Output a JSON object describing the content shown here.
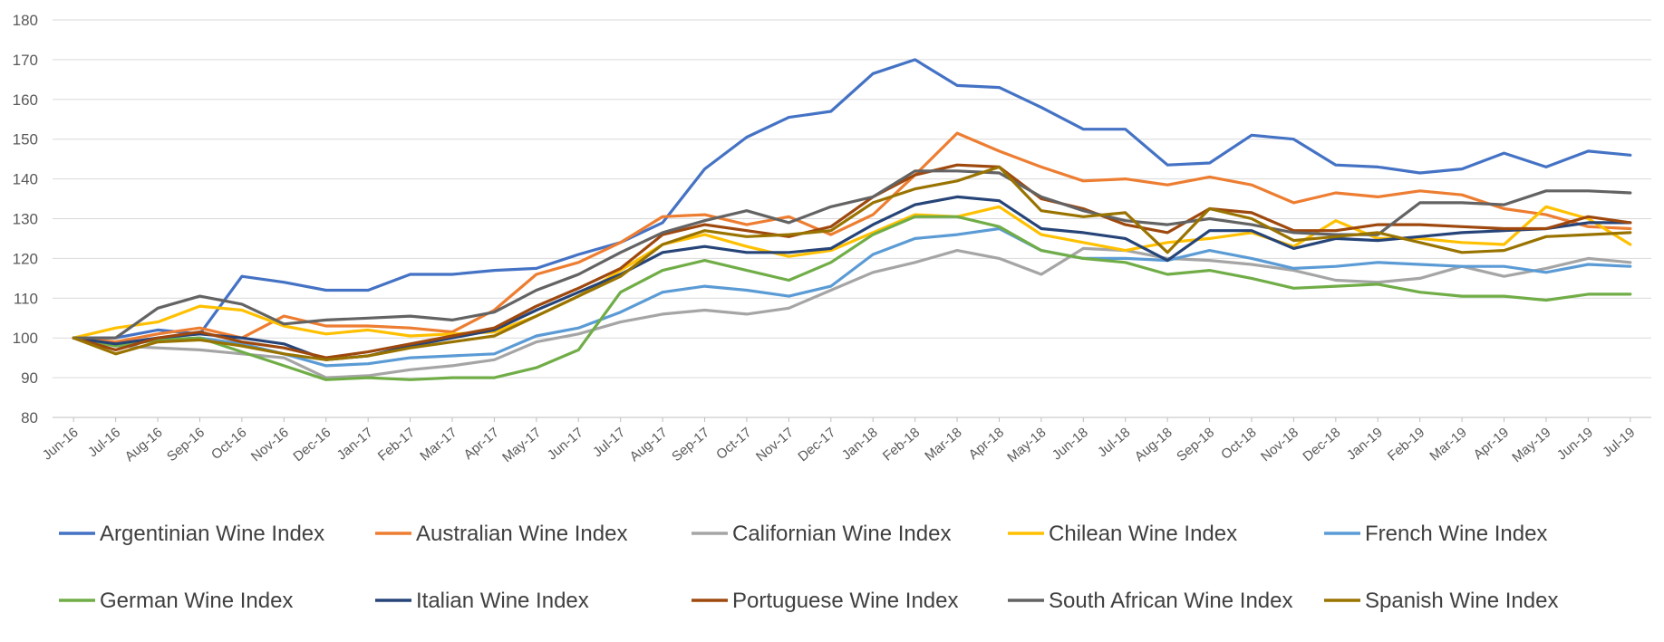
{
  "chart_data": {
    "type": "line",
    "title": "",
    "xlabel": "",
    "ylabel": "",
    "ylim": [
      80,
      180
    ],
    "yticks": [
      80,
      90,
      100,
      110,
      120,
      130,
      140,
      150,
      160,
      170,
      180
    ],
    "grid": true,
    "legend_position": "bottom",
    "categories": [
      "Jun-16",
      "Jul-16",
      "Aug-16",
      "Sep-16",
      "Oct-16",
      "Nov-16",
      "Dec-16",
      "Jan-17",
      "Feb-17",
      "Mar-17",
      "Apr-17",
      "May-17",
      "Jun-17",
      "Jul-17",
      "Aug-17",
      "Sep-17",
      "Oct-17",
      "Nov-17",
      "Dec-17",
      "Jan-18",
      "Feb-18",
      "Mar-18",
      "Apr-18",
      "May-18",
      "Jun-18",
      "Jul-18",
      "Aug-18",
      "Sep-18",
      "Oct-18",
      "Nov-18",
      "Dec-18",
      "Jan-19",
      "Feb-19",
      "Mar-19",
      "Apr-19",
      "May-19",
      "Jun-19",
      "Jul-19"
    ],
    "series": [
      {
        "name": "Argentinian Wine Index",
        "color": "#4472C4",
        "values": [
          100,
          100,
          102,
          101,
          115.5,
          114,
          112,
          112,
          116,
          116,
          117,
          117.5,
          121,
          124,
          129,
          142.5,
          150.5,
          155.5,
          157,
          166.5,
          170,
          163.5,
          163,
          158,
          152.5,
          152.5,
          143.5,
          144,
          151,
          150,
          143.5,
          143,
          141.5,
          142.5,
          146.5,
          143,
          147,
          146
        ]
      },
      {
        "name": "Australian Wine Index",
        "color": "#ED7D31",
        "values": [
          100,
          99,
          101,
          102.5,
          100,
          105.5,
          103,
          103,
          102.5,
          101.5,
          107,
          116,
          119,
          124,
          130.5,
          131,
          128.5,
          130.5,
          126,
          131,
          141,
          151.5,
          147,
          143,
          139.5,
          140,
          138.5,
          140.5,
          138.5,
          134,
          136.5,
          135.5,
          137,
          136,
          132.5,
          131,
          128,
          127.5
        ]
      },
      {
        "name": "Californian Wine Index",
        "color": "#A5A5A5",
        "values": [
          100,
          98,
          97.5,
          97,
          96,
          95,
          90,
          90.5,
          92,
          93,
          94.5,
          99,
          101,
          104,
          106,
          107,
          106,
          107.5,
          112,
          116.5,
          119,
          122,
          120,
          116,
          122.5,
          122,
          120,
          119.5,
          118.5,
          117,
          114.5,
          114,
          115,
          118,
          115.5,
          117.5,
          120,
          119
        ]
      },
      {
        "name": "Chilean Wine Index",
        "color": "#FFC000",
        "values": [
          100,
          102.5,
          104,
          108,
          107,
          103,
          101,
          102,
          100.5,
          101,
          101.5,
          105.5,
          110.5,
          117,
          123.5,
          126,
          123,
          120.5,
          122,
          126.5,
          131,
          130.5,
          133,
          126,
          124,
          122,
          124,
          125,
          126.5,
          123,
          129.5,
          125,
          125,
          124,
          123.5,
          133,
          130,
          123.5
        ]
      },
      {
        "name": "French Wine Index",
        "color": "#5B9BD5",
        "values": [
          100,
          98,
          99.5,
          100,
          98.5,
          96,
          93,
          93.5,
          95,
          95.5,
          96,
          100.5,
          102.5,
          106.5,
          111.5,
          113,
          112,
          110.5,
          113,
          121,
          125,
          126,
          127.5,
          122,
          120,
          120,
          119.5,
          122,
          120,
          117.5,
          118,
          119,
          118.5,
          118,
          118,
          116.5,
          118.5,
          118
        ]
      },
      {
        "name": "German Wine Index",
        "color": "#70AD47",
        "values": [
          100,
          98,
          99.5,
          100,
          96.5,
          93,
          89.5,
          90,
          89.5,
          90,
          90,
          92.5,
          97,
          111.5,
          117,
          119.5,
          117,
          114.5,
          119,
          126,
          130.5,
          130.5,
          128,
          122,
          120,
          119,
          116,
          117,
          115,
          112.5,
          113,
          113.5,
          111.5,
          110.5,
          110.5,
          109.5,
          111,
          111
        ]
      },
      {
        "name": "Italian Wine Index",
        "color": "#264478",
        "values": [
          100,
          98.5,
          100,
          101,
          100,
          98.5,
          94.5,
          95.5,
          98,
          100,
          102,
          107,
          111.5,
          116,
          121.5,
          123,
          121.5,
          121.5,
          122.5,
          128.5,
          133.5,
          135.5,
          134.5,
          127.5,
          126.5,
          125,
          119.5,
          127,
          127,
          122.5,
          125,
          124.5,
          125.5,
          126.5,
          127,
          127.5,
          129,
          129
        ]
      },
      {
        "name": "Portuguese Wine Index",
        "color": "#9E480E",
        "values": [
          100,
          97,
          100,
          101.5,
          99,
          97.5,
          95,
          96.5,
          98.5,
          100.5,
          102.5,
          108,
          112.5,
          117.5,
          126,
          128.5,
          127,
          125.5,
          128,
          135.5,
          141,
          143.5,
          143,
          135,
          132.5,
          128.5,
          126.5,
          132.5,
          131.5,
          127,
          127,
          128.5,
          128.5,
          128,
          127.5,
          127.5,
          130.5,
          129
        ]
      },
      {
        "name": "South African Wine Index",
        "color": "#636363",
        "values": [
          100,
          100,
          107.5,
          110.5,
          108.5,
          103.5,
          104.5,
          105,
          105.5,
          104.5,
          106.5,
          112,
          116,
          121.5,
          126.5,
          129.5,
          132,
          129,
          133,
          135.5,
          142,
          142,
          141.5,
          135.5,
          132,
          129.5,
          128.5,
          130,
          128.5,
          126.5,
          126,
          126,
          134,
          134,
          133.5,
          137,
          137,
          136.5
        ]
      },
      {
        "name": "Spanish Wine Index",
        "color": "#997300",
        "values": [
          100,
          96,
          99,
          99.5,
          98,
          96,
          94.5,
          95.5,
          97.5,
          99,
          100.5,
          105.5,
          110.5,
          115.5,
          123.5,
          127,
          125.5,
          126,
          127,
          134,
          137.5,
          139.5,
          143,
          132,
          130.5,
          131.5,
          121.5,
          132.5,
          130,
          124.5,
          125.5,
          126.5,
          124,
          121.5,
          122,
          125.5,
          126,
          126.5
        ]
      }
    ]
  }
}
